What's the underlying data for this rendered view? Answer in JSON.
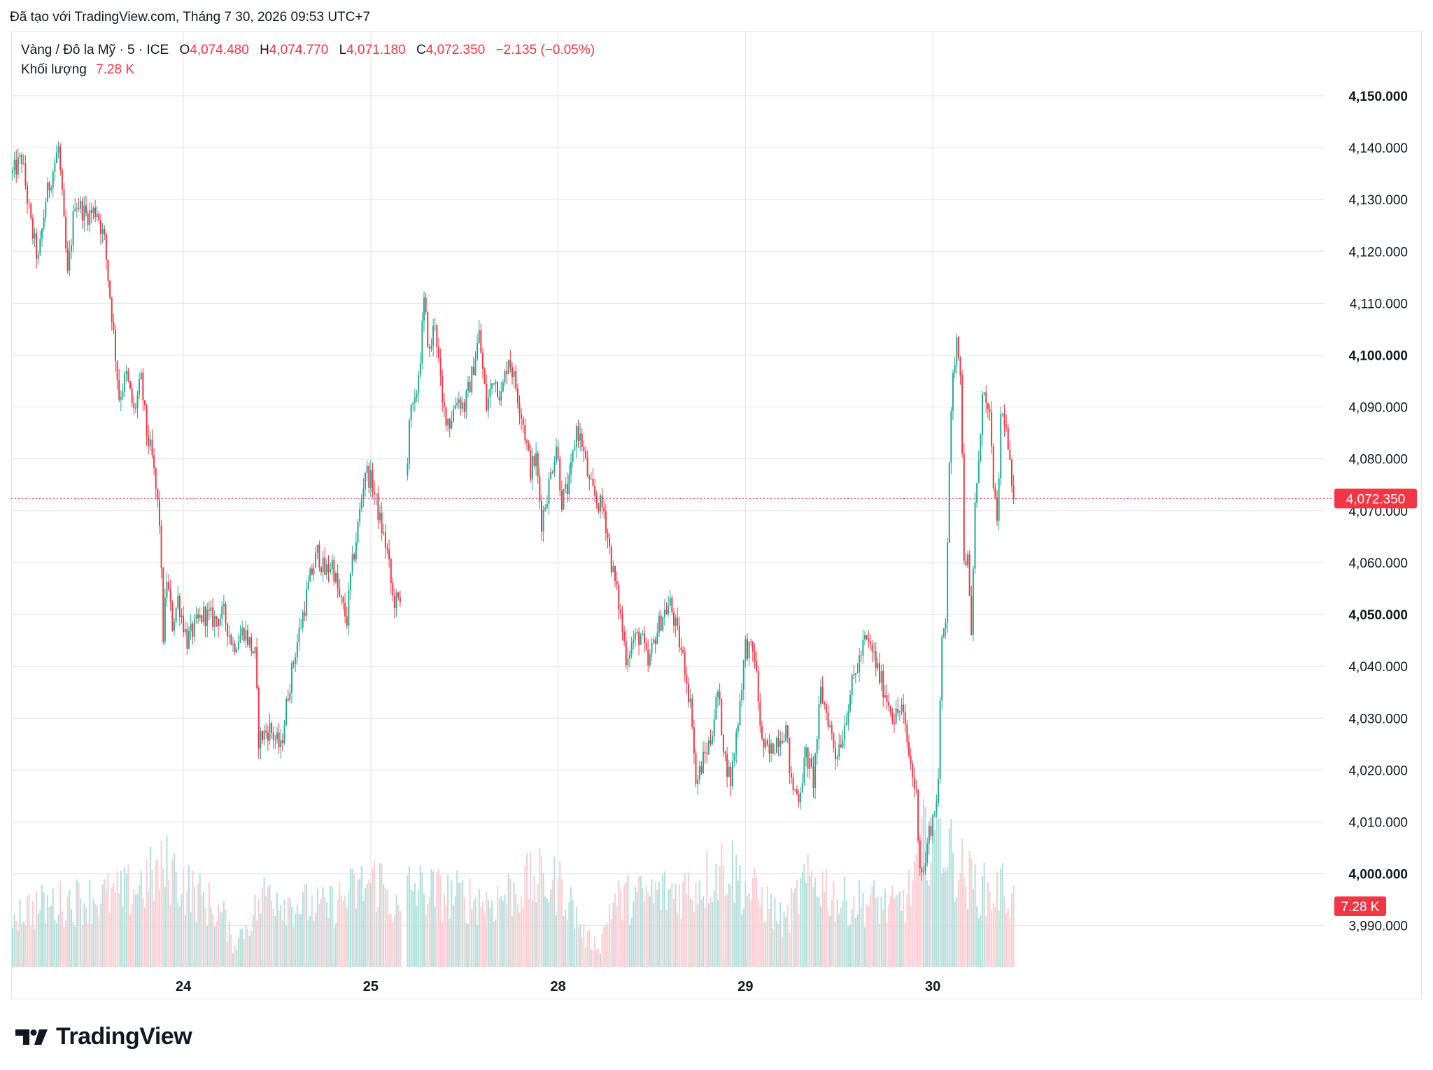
{
  "header": {
    "created_text": "Đã tạo với TradingView.com, Tháng 7 30, 2026 09:53 UTC+7"
  },
  "legend": {
    "symbol": "Vàng / Đô la Mỹ · 5 · ICE",
    "open_label": "O",
    "open": "4,074.480",
    "high_label": "H",
    "high": "4,074.770",
    "low_label": "L",
    "low": "4,071.180",
    "close_label": "C",
    "close": "4,072.350",
    "change": "−2.135 (−0.05%)",
    "volume_label": "Khối lượng",
    "volume": "7.28 K"
  },
  "brand": {
    "name": "TradingView"
  },
  "colors": {
    "up": "#22ab94",
    "down": "#f23645",
    "up_vol": "#b2dfdb",
    "down_vol": "#facdd1",
    "grid": "#e0e3eb",
    "text": "#131722"
  },
  "chart_data": {
    "type": "candlestick",
    "interval": "5",
    "y_axis": {
      "ylim": [
        3982,
        4162
      ],
      "ticks": [
        {
          "value": 4150,
          "label": "4,150.000",
          "bold": true
        },
        {
          "value": 4140,
          "label": "4,140.000",
          "bold": false
        },
        {
          "value": 4130,
          "label": "4,130.000",
          "bold": false
        },
        {
          "value": 4120,
          "label": "4,120.000",
          "bold": false
        },
        {
          "value": 4110,
          "label": "4,110.000",
          "bold": false
        },
        {
          "value": 4100,
          "label": "4,100.000",
          "bold": true
        },
        {
          "value": 4090,
          "label": "4,090.000",
          "bold": false
        },
        {
          "value": 4080,
          "label": "4,080.000",
          "bold": false
        },
        {
          "value": 4070,
          "label": "4,070.000",
          "bold": false
        },
        {
          "value": 4060,
          "label": "4,060.000",
          "bold": false
        },
        {
          "value": 4050,
          "label": "4,050.000",
          "bold": true
        },
        {
          "value": 4040,
          "label": "4,040.000",
          "bold": false
        },
        {
          "value": 4030,
          "label": "4,030.000",
          "bold": false
        },
        {
          "value": 4020,
          "label": "4,020.000",
          "bold": false
        },
        {
          "value": 4010,
          "label": "4,010.000",
          "bold": false
        },
        {
          "value": 4000,
          "label": "4,000.000",
          "bold": true
        },
        {
          "value": 3990,
          "label": "3,990.000",
          "bold": false
        }
      ]
    },
    "x_axis": {
      "labels": [
        {
          "label": "24",
          "bar_index": 93
        },
        {
          "label": "25",
          "bar_index": 195
        },
        {
          "label": "28",
          "bar_index": 297
        },
        {
          "label": "29",
          "bar_index": 399
        },
        {
          "label": "30",
          "bar_index": 501
        }
      ]
    },
    "last_price": {
      "value": 4072.35,
      "label": "4,072.350"
    },
    "last_volume": {
      "label": "7.28 K"
    },
    "gaps": [
      [
        211,
        215
      ]
    ],
    "anchors": [
      [
        0,
        4135
      ],
      [
        5,
        4138
      ],
      [
        10,
        4125
      ],
      [
        14,
        4118
      ],
      [
        18,
        4130
      ],
      [
        25,
        4140
      ],
      [
        30,
        4115
      ],
      [
        34,
        4130
      ],
      [
        40,
        4127
      ],
      [
        46,
        4128
      ],
      [
        50,
        4122
      ],
      [
        54,
        4108
      ],
      [
        58,
        4092
      ],
      [
        62,
        4096
      ],
      [
        66,
        4089
      ],
      [
        70,
        4095
      ],
      [
        73,
        4085
      ],
      [
        76,
        4080
      ],
      [
        80,
        4068
      ],
      [
        82,
        4046
      ],
      [
        84,
        4057
      ],
      [
        87,
        4048
      ],
      [
        90,
        4053
      ],
      [
        95,
        4045
      ],
      [
        100,
        4048
      ],
      [
        104,
        4050
      ],
      [
        110,
        4049
      ],
      [
        115,
        4050
      ],
      [
        120,
        4044
      ],
      [
        126,
        4047
      ],
      [
        132,
        4042
      ],
      [
        134,
        4026
      ],
      [
        140,
        4028
      ],
      [
        146,
        4024
      ],
      [
        150,
        4035
      ],
      [
        154,
        4043
      ],
      [
        158,
        4050
      ],
      [
        162,
        4057
      ],
      [
        166,
        4062
      ],
      [
        170,
        4058
      ],
      [
        174,
        4060
      ],
      [
        178,
        4053
      ],
      [
        182,
        4049
      ],
      [
        184,
        4057
      ],
      [
        188,
        4067
      ],
      [
        192,
        4078
      ],
      [
        196,
        4075
      ],
      [
        200,
        4068
      ],
      [
        204,
        4062
      ],
      [
        207,
        4053
      ],
      [
        211,
        4052
      ],
      [
        216,
        4088
      ],
      [
        219,
        4090
      ],
      [
        222,
        4100
      ],
      [
        224,
        4110
      ],
      [
        227,
        4100
      ],
      [
        230,
        4107
      ],
      [
        234,
        4090
      ],
      [
        238,
        4087
      ],
      [
        242,
        4092
      ],
      [
        246,
        4090
      ],
      [
        250,
        4096
      ],
      [
        254,
        4104
      ],
      [
        258,
        4090
      ],
      [
        262,
        4096
      ],
      [
        266,
        4092
      ],
      [
        270,
        4100
      ],
      [
        274,
        4094
      ],
      [
        278,
        4087
      ],
      [
        282,
        4078
      ],
      [
        285,
        4080
      ],
      [
        288,
        4068
      ],
      [
        292,
        4075
      ],
      [
        296,
        4083
      ],
      [
        299,
        4072
      ],
      [
        303,
        4075
      ],
      [
        307,
        4086
      ],
      [
        310,
        4083
      ],
      [
        314,
        4075
      ],
      [
        318,
        4072
      ],
      [
        322,
        4070
      ],
      [
        326,
        4060
      ],
      [
        330,
        4052
      ],
      [
        334,
        4042
      ],
      [
        338,
        4045
      ],
      [
        342,
        4046
      ],
      [
        346,
        4040
      ],
      [
        350,
        4046
      ],
      [
        354,
        4050
      ],
      [
        358,
        4052
      ],
      [
        362,
        4046
      ],
      [
        366,
        4040
      ],
      [
        370,
        4030
      ],
      [
        372,
        4017
      ],
      [
        376,
        4022
      ],
      [
        380,
        4026
      ],
      [
        384,
        4035
      ],
      [
        388,
        4022
      ],
      [
        391,
        4018
      ],
      [
        395,
        4030
      ],
      [
        399,
        4044
      ],
      [
        404,
        4042
      ],
      [
        408,
        4025
      ],
      [
        412,
        4023
      ],
      [
        416,
        4026
      ],
      [
        421,
        4028
      ],
      [
        424,
        4017
      ],
      [
        428,
        4015
      ],
      [
        432,
        4023
      ],
      [
        436,
        4018
      ],
      [
        440,
        4035
      ],
      [
        444,
        4030
      ],
      [
        448,
        4023
      ],
      [
        452,
        4027
      ],
      [
        456,
        4035
      ],
      [
        460,
        4040
      ],
      [
        464,
        4045
      ],
      [
        468,
        4043
      ],
      [
        472,
        4038
      ],
      [
        476,
        4034
      ],
      [
        480,
        4030
      ],
      [
        484,
        4032
      ],
      [
        488,
        4023
      ],
      [
        492,
        4015
      ],
      [
        494,
        4002
      ],
      [
        496,
        4000
      ],
      [
        499,
        4008
      ],
      [
        502,
        4012
      ],
      [
        504,
        4018
      ],
      [
        506,
        4045
      ],
      [
        508,
        4050
      ],
      [
        510,
        4080
      ],
      [
        512,
        4095
      ],
      [
        514,
        4104
      ],
      [
        516,
        4098
      ],
      [
        518,
        4062
      ],
      [
        520,
        4060
      ],
      [
        522,
        4045
      ],
      [
        524,
        4072
      ],
      [
        526,
        4078
      ],
      [
        528,
        4094
      ],
      [
        530,
        4090
      ],
      [
        532,
        4087
      ],
      [
        534,
        4076
      ],
      [
        536,
        4066
      ],
      [
        538,
        4088
      ],
      [
        540,
        4088
      ],
      [
        542,
        4082
      ],
      [
        544,
        4074
      ],
      [
        545,
        4072.35
      ]
    ],
    "volume_level": [
      [
        0,
        0.38
      ],
      [
        30,
        0.45
      ],
      [
        60,
        0.5
      ],
      [
        85,
        0.68
      ],
      [
        95,
        0.55
      ],
      [
        115,
        0.35
      ],
      [
        120,
        0.15
      ],
      [
        128,
        0.3
      ],
      [
        140,
        0.55
      ],
      [
        150,
        0.45
      ],
      [
        170,
        0.4
      ],
      [
        190,
        0.55
      ],
      [
        200,
        0.6
      ],
      [
        211,
        0.35
      ],
      [
        216,
        0.55
      ],
      [
        235,
        0.5
      ],
      [
        260,
        0.45
      ],
      [
        285,
        0.6
      ],
      [
        300,
        0.55
      ],
      [
        312,
        0.2
      ],
      [
        320,
        0.15
      ],
      [
        326,
        0.45
      ],
      [
        350,
        0.5
      ],
      [
        370,
        0.55
      ],
      [
        390,
        0.72
      ],
      [
        398,
        0.55
      ],
      [
        410,
        0.45
      ],
      [
        420,
        0.3
      ],
      [
        430,
        0.55
      ],
      [
        440,
        0.6
      ],
      [
        450,
        0.45
      ],
      [
        470,
        0.45
      ],
      [
        480,
        0.4
      ],
      [
        488,
        0.5
      ],
      [
        496,
        0.9
      ],
      [
        504,
        0.95
      ],
      [
        512,
        0.75
      ],
      [
        520,
        0.6
      ],
      [
        532,
        0.5
      ],
      [
        540,
        0.55
      ],
      [
        545,
        0.45
      ]
    ]
  }
}
